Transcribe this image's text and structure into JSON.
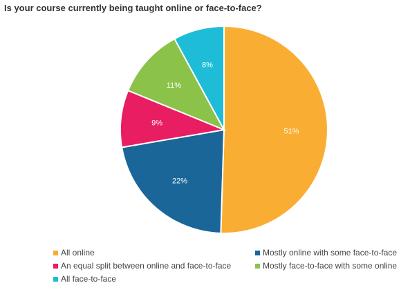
{
  "title": "Is your course currently being taught online or face-to-face?",
  "chart_data": {
    "type": "pie",
    "title": "Is your course currently being taught online or face-to-face?",
    "categories": [
      "All online",
      "Mostly online with some face-to-face",
      "An equal split between online and face-to-face",
      "Mostly face-to-face with some online",
      "All face-to-face"
    ],
    "values": [
      51,
      22,
      9,
      11,
      8
    ],
    "value_labels": [
      "51%",
      "22%",
      "9%",
      "11%",
      "8%"
    ],
    "colors": [
      "#F9AE33",
      "#1A6699",
      "#E81D62",
      "#8BC34A",
      "#1EBCD7"
    ],
    "legend_position": "bottom"
  }
}
